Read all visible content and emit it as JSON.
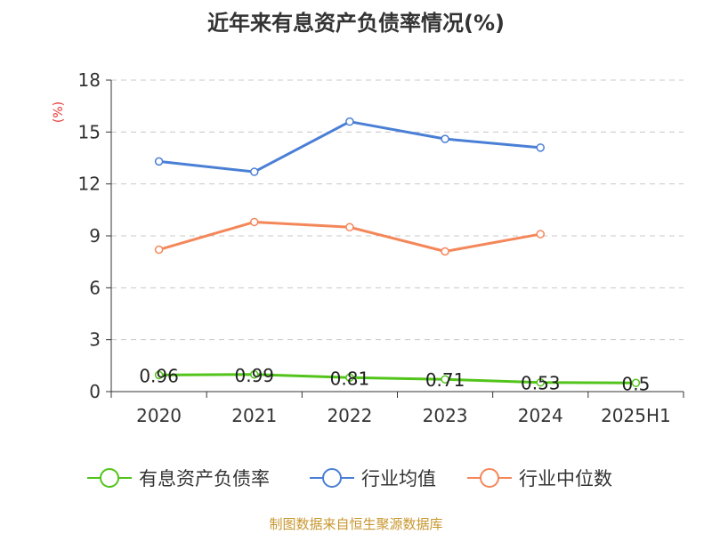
{
  "colors": {
    "debt_ratio": "#52c41a",
    "industry_avg": "#4a7fd6",
    "industry_median": "#f4875a",
    "unit_label": "#e53935",
    "source_note": "#c8962e",
    "grid": "#c8c8c8",
    "axis": "#333333"
  },
  "chart_data": {
    "type": "line",
    "title": "近年来有息资产负债率情况(%)",
    "ylabel": "(%)",
    "xlabel": "",
    "categories": [
      "2020",
      "2021",
      "2022",
      "2023",
      "2024",
      "2025H1"
    ],
    "yticks": [
      "0",
      "3",
      "6",
      "9",
      "12",
      "15",
      "18"
    ],
    "ylim": [
      0,
      18
    ],
    "grid": true,
    "legend_position": "bottom",
    "series": [
      {
        "name": "有息资产负债率",
        "values": [
          0.96,
          0.99,
          0.81,
          0.71,
          0.53,
          0.5
        ],
        "labels": [
          "0.96",
          "0.99",
          "0.81",
          "0.71",
          "0.53",
          "0.5"
        ],
        "color": "#52c41a"
      },
      {
        "name": "行业均值",
        "values": [
          13.3,
          12.7,
          15.6,
          14.6,
          14.1,
          null
        ],
        "color": "#4a7fd6"
      },
      {
        "name": "行业中位数",
        "values": [
          8.2,
          9.8,
          9.5,
          8.1,
          9.1,
          null
        ],
        "color": "#f4875a"
      }
    ]
  },
  "footer": {
    "source": "制图数据来自恒生聚源数据库"
  }
}
